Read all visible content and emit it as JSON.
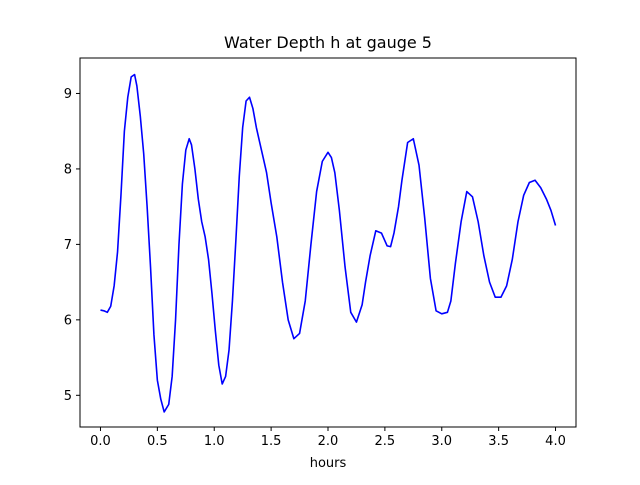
{
  "chart_data": {
    "type": "line",
    "title": "Water Depth h at gauge 5",
    "xlabel": "hours",
    "ylabel": "",
    "xlim": [
      -0.18,
      4.18
    ],
    "ylim": [
      4.58,
      9.47
    ],
    "xticks": [
      0.0,
      0.5,
      1.0,
      1.5,
      2.0,
      2.5,
      3.0,
      3.5,
      4.0
    ],
    "xtick_labels": [
      "0.0",
      "0.5",
      "1.0",
      "1.5",
      "2.0",
      "2.5",
      "3.0",
      "3.5",
      "4.0"
    ],
    "yticks": [
      5,
      6,
      7,
      8,
      9
    ],
    "ytick_labels": [
      "5",
      "6",
      "7",
      "8",
      "9"
    ],
    "grid": false,
    "series": [
      {
        "color": "#0000ff",
        "x": [
          0.0,
          0.03,
          0.06,
          0.09,
          0.12,
          0.15,
          0.18,
          0.21,
          0.24,
          0.27,
          0.3,
          0.32,
          0.35,
          0.38,
          0.41,
          0.44,
          0.47,
          0.5,
          0.53,
          0.56,
          0.6,
          0.63,
          0.66,
          0.69,
          0.72,
          0.75,
          0.78,
          0.8,
          0.83,
          0.86,
          0.89,
          0.92,
          0.95,
          0.98,
          1.01,
          1.04,
          1.07,
          1.1,
          1.13,
          1.16,
          1.19,
          1.22,
          1.25,
          1.28,
          1.31,
          1.34,
          1.37,
          1.4,
          1.43,
          1.46,
          1.5,
          1.55,
          1.6,
          1.65,
          1.7,
          1.75,
          1.8,
          1.85,
          1.9,
          1.95,
          2.0,
          2.03,
          2.06,
          2.1,
          2.15,
          2.2,
          2.25,
          2.3,
          2.33,
          2.37,
          2.42,
          2.47,
          2.52,
          2.55,
          2.58,
          2.62,
          2.65,
          2.7,
          2.75,
          2.8,
          2.85,
          2.9,
          2.95,
          3.0,
          3.05,
          3.08,
          3.12,
          3.17,
          3.22,
          3.27,
          3.32,
          3.37,
          3.42,
          3.47,
          3.52,
          3.57,
          3.62,
          3.67,
          3.72,
          3.77,
          3.82,
          3.87,
          3.92,
          3.96,
          4.0
        ],
        "y": [
          6.13,
          6.12,
          6.1,
          6.18,
          6.45,
          6.9,
          7.65,
          8.5,
          8.95,
          9.22,
          9.25,
          9.1,
          8.7,
          8.2,
          7.5,
          6.7,
          5.8,
          5.2,
          4.95,
          4.78,
          4.88,
          5.25,
          6.0,
          7.0,
          7.8,
          8.25,
          8.4,
          8.32,
          8.0,
          7.6,
          7.3,
          7.1,
          6.8,
          6.35,
          5.85,
          5.4,
          5.15,
          5.25,
          5.6,
          6.25,
          7.05,
          7.9,
          8.55,
          8.9,
          8.95,
          8.8,
          8.55,
          8.35,
          8.15,
          7.95,
          7.55,
          7.1,
          6.5,
          6.0,
          5.75,
          5.82,
          6.25,
          7.0,
          7.7,
          8.1,
          8.22,
          8.15,
          7.95,
          7.45,
          6.7,
          6.1,
          5.97,
          6.2,
          6.5,
          6.85,
          7.18,
          7.15,
          6.98,
          6.97,
          7.15,
          7.5,
          7.85,
          8.35,
          8.4,
          8.05,
          7.35,
          6.55,
          6.12,
          6.08,
          6.1,
          6.25,
          6.75,
          7.3,
          7.7,
          7.63,
          7.3,
          6.85,
          6.5,
          6.3,
          6.3,
          6.45,
          6.8,
          7.3,
          7.65,
          7.82,
          7.85,
          7.75,
          7.6,
          7.45,
          7.25
        ]
      }
    ]
  }
}
